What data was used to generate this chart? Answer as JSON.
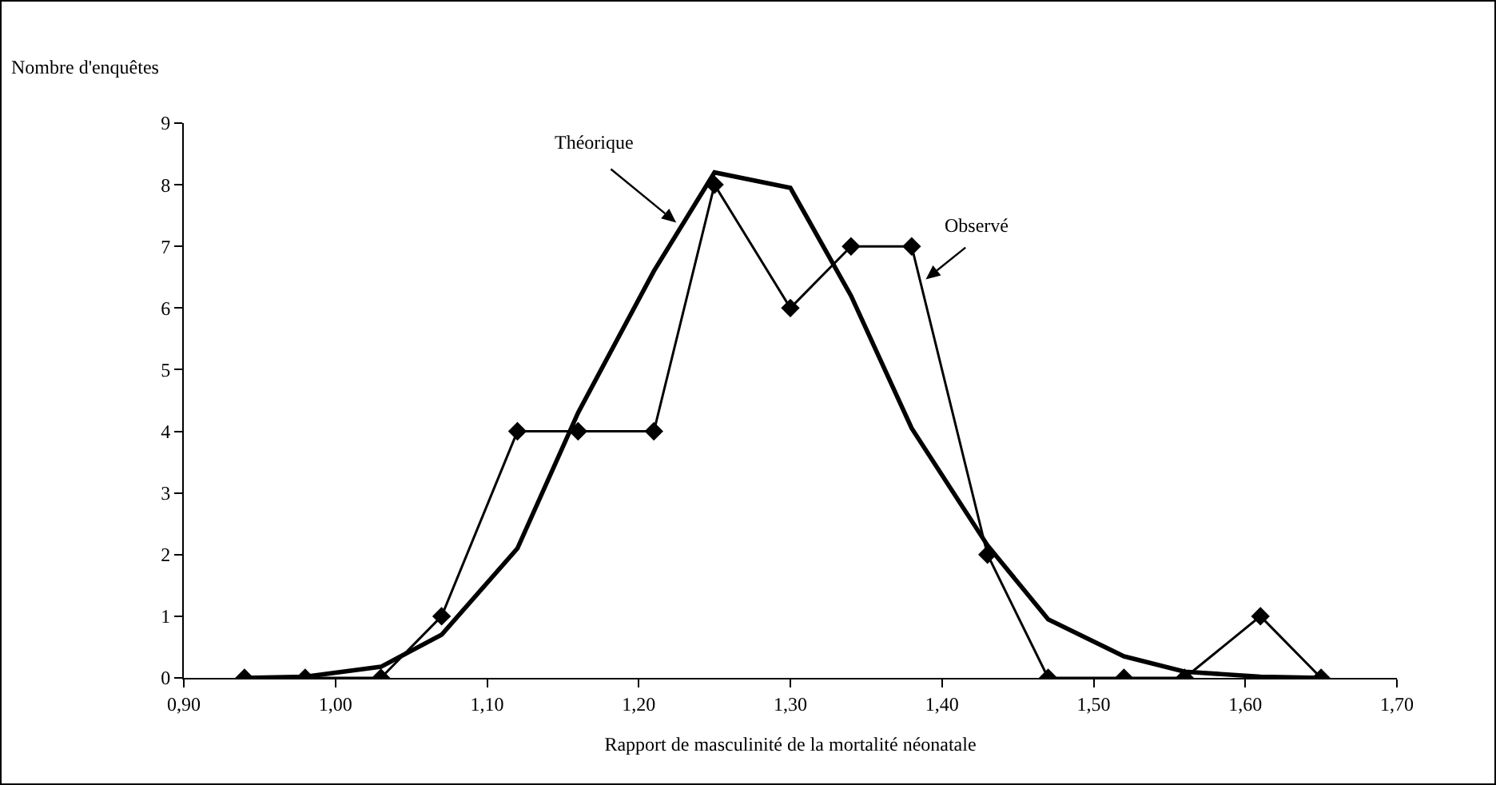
{
  "chart_data": {
    "type": "line",
    "ylabel": "Nombre d'enquêtes",
    "xlabel": "Rapport de masculinité de la mortalité néonatale",
    "x": [
      0.94,
      0.98,
      1.03,
      1.07,
      1.12,
      1.16,
      1.21,
      1.25,
      1.3,
      1.34,
      1.38,
      1.43,
      1.47,
      1.52,
      1.56,
      1.61,
      1.65
    ],
    "series": [
      {
        "name": "Théorique",
        "color": "#000000",
        "marker": "none",
        "values": [
          0,
          0.02,
          0.18,
          0.7,
          2.1,
          4.3,
          6.6,
          8.2,
          7.95,
          6.2,
          4.05,
          2.15,
          0.95,
          0.35,
          0.1,
          0.02,
          0
        ]
      },
      {
        "name": "Observé",
        "color": "#000000",
        "marker": "diamond",
        "values": [
          0,
          0,
          0,
          1,
          4,
          4,
          4,
          8,
          6,
          7,
          7,
          2,
          0,
          0,
          0,
          1,
          0
        ]
      }
    ],
    "xlim": [
      0.9,
      1.7
    ],
    "xticks": [
      {
        "value": 0.9,
        "label": "0,90"
      },
      {
        "value": 1.0,
        "label": "1,00"
      },
      {
        "value": 1.1,
        "label": "1,10"
      },
      {
        "value": 1.2,
        "label": "1,20"
      },
      {
        "value": 1.3,
        "label": "1,30"
      },
      {
        "value": 1.4,
        "label": "1,40"
      },
      {
        "value": 1.5,
        "label": "1,50"
      },
      {
        "value": 1.6,
        "label": "1,60"
      },
      {
        "value": 1.7,
        "label": "1,70"
      }
    ],
    "ylim": [
      0,
      9
    ],
    "yticks": [
      0,
      1,
      2,
      3,
      4,
      5,
      6,
      7,
      8,
      9
    ],
    "grid": false,
    "legend": false,
    "line_style": "solid"
  }
}
